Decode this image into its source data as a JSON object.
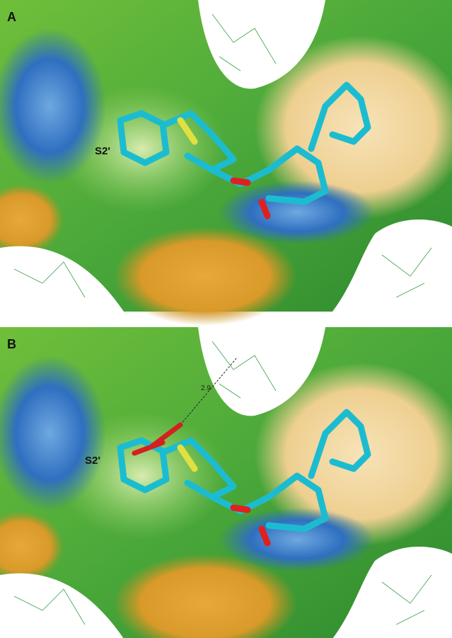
{
  "panels": [
    {
      "label": "A",
      "pocket_label": "S2'"
    },
    {
      "label": "B",
      "pocket_label": "S2'",
      "distance_label": 2.9
    }
  ]
}
